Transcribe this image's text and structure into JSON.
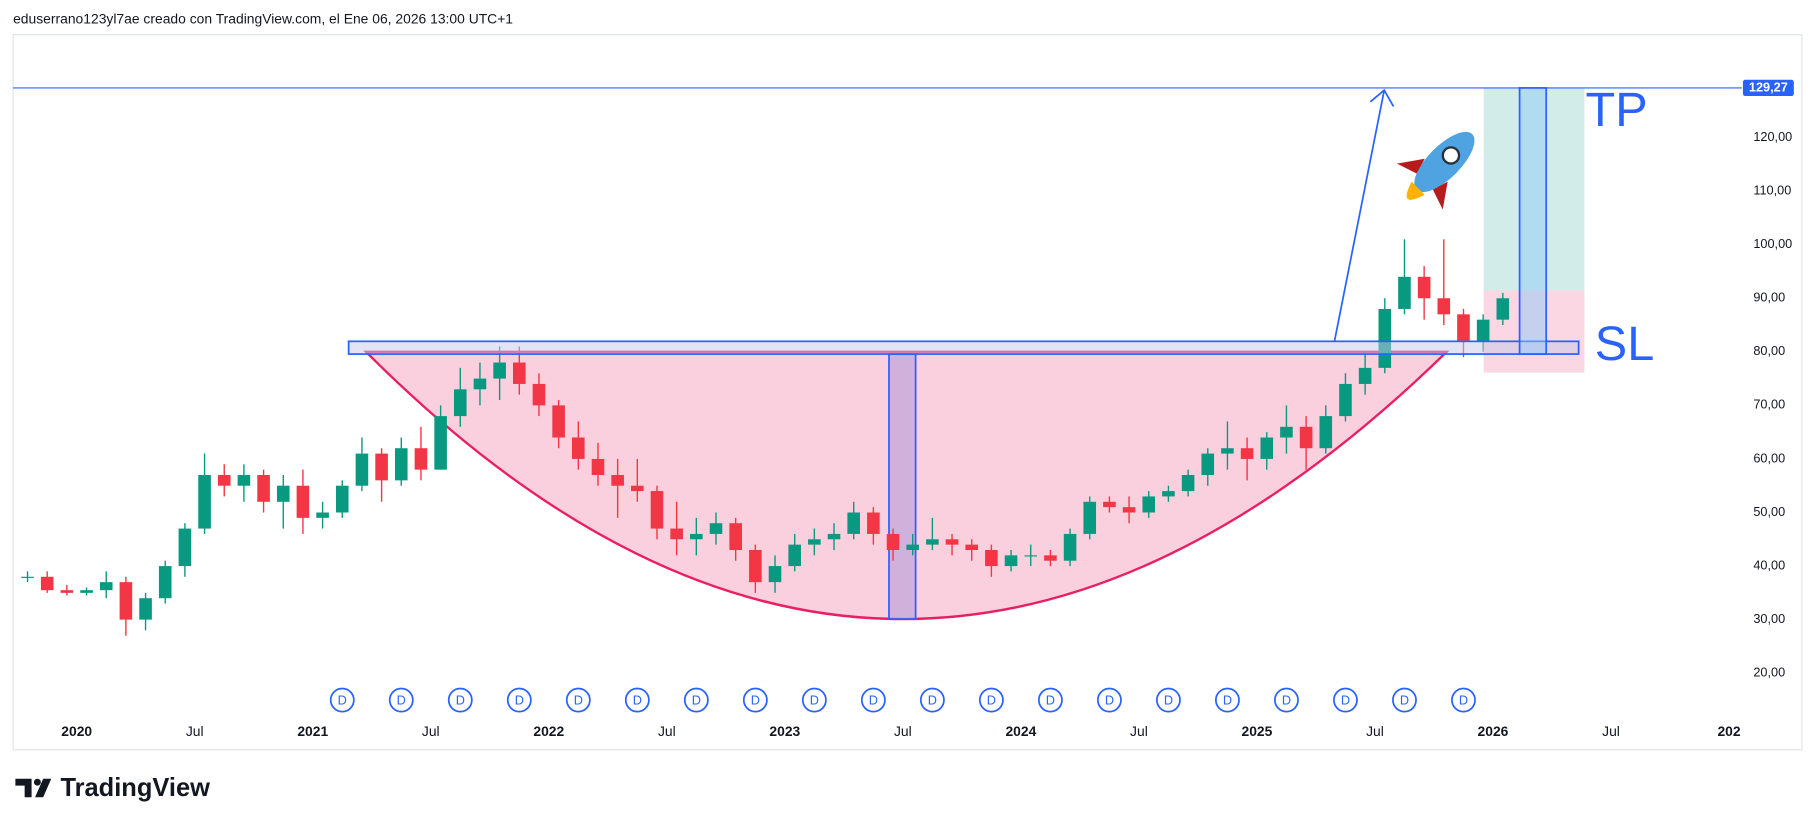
{
  "header": {
    "text": "eduserrano123yl7ae creado con TradingView.com, el Ene 06, 2026 13:00 UTC+1"
  },
  "footer": {
    "logo": "TradingView"
  },
  "chart_data": {
    "type": "candlestick",
    "x": [
      "2019-10",
      "2019-11",
      "2019-12",
      "2020-01",
      "2020-02",
      "2020-03",
      "2020-04",
      "2020-05",
      "2020-06",
      "2020-07",
      "2020-08",
      "2020-09",
      "2020-10",
      "2020-11",
      "2020-12",
      "2021-01",
      "2021-02",
      "2021-03",
      "2021-04",
      "2021-05",
      "2021-06",
      "2021-07",
      "2021-08",
      "2021-09",
      "2021-10",
      "2021-11",
      "2021-12",
      "2022-01",
      "2022-02",
      "2022-03",
      "2022-04",
      "2022-05",
      "2022-06",
      "2022-07",
      "2022-08",
      "2022-09",
      "2022-10",
      "2022-11",
      "2022-12",
      "2023-01",
      "2023-02",
      "2023-03",
      "2023-04",
      "2023-05",
      "2023-06",
      "2023-07",
      "2023-08",
      "2023-09",
      "2023-10",
      "2023-11",
      "2023-12",
      "2024-01",
      "2024-02",
      "2024-03",
      "2024-04",
      "2024-05",
      "2024-06",
      "2024-07",
      "2024-08",
      "2024-09",
      "2024-10",
      "2024-11",
      "2024-12",
      "2025-01",
      "2025-02",
      "2025-03",
      "2025-04",
      "2025-05",
      "2025-06",
      "2025-07",
      "2025-08",
      "2025-09",
      "2025-10",
      "2025-11",
      "2025-12",
      "2026-01"
    ],
    "open": [
      38,
      38,
      35.5,
      35,
      35.5,
      37,
      30,
      34,
      40,
      47,
      57,
      55,
      57,
      52,
      55,
      49,
      50,
      55,
      61,
      56,
      62,
      58,
      68,
      73,
      75,
      78,
      74,
      70,
      64,
      60,
      57,
      55,
      54,
      47,
      45,
      46,
      48,
      43,
      37,
      40,
      44,
      45,
      46,
      50,
      46,
      43,
      44,
      45,
      44,
      43,
      40,
      42,
      42,
      41,
      46,
      52,
      51,
      50,
      53,
      54,
      57,
      61,
      62,
      60,
      64,
      66,
      62,
      68,
      74,
      77,
      88,
      94,
      90,
      87,
      82,
      86
    ],
    "high": [
      39,
      39,
      36.5,
      36,
      39,
      38,
      35,
      41,
      48,
      61,
      59,
      59,
      58,
      57,
      58,
      52,
      56,
      64,
      62,
      64,
      66,
      70,
      77,
      78,
      81,
      81,
      76,
      71,
      67,
      63,
      60,
      60,
      55,
      52,
      49,
      50,
      49,
      44,
      42,
      46,
      47,
      48,
      52,
      51,
      47,
      46,
      49,
      46,
      45,
      44,
      43,
      44,
      43,
      47,
      53,
      53,
      53,
      54,
      55,
      58,
      62,
      67,
      64,
      65,
      70,
      68,
      70,
      76,
      80,
      90,
      101,
      96,
      101,
      88,
      87,
      91
    ],
    "low": [
      37,
      35,
      34.5,
      34.5,
      34,
      27,
      28,
      33,
      38,
      46,
      53,
      52,
      50,
      47,
      46,
      47,
      49,
      54,
      52,
      55,
      56,
      58,
      66,
      70,
      71,
      72,
      68,
      62,
      58,
      55,
      49,
      52,
      45,
      42,
      42,
      44,
      41,
      35,
      35,
      39,
      42,
      43,
      45,
      44,
      41,
      42,
      43,
      42,
      41,
      38,
      39,
      40,
      40,
      40,
      45,
      50,
      48,
      49,
      52,
      53,
      55,
      58,
      56,
      58,
      61,
      58,
      61,
      67,
      72,
      76,
      87,
      86,
      85,
      79,
      80,
      85
    ],
    "close": [
      38,
      35.5,
      35,
      35.5,
      37,
      30,
      34,
      40,
      47,
      57,
      55,
      57,
      52,
      55,
      49,
      50,
      55,
      61,
      56,
      62,
      58,
      68,
      73,
      75,
      78,
      74,
      70,
      64,
      60,
      57,
      55,
      54,
      47,
      45,
      46,
      48,
      43,
      37,
      40,
      44,
      45,
      46,
      50,
      46,
      43,
      44,
      45,
      44,
      43,
      40,
      42,
      42,
      41,
      46,
      52,
      51,
      50,
      53,
      54,
      57,
      61,
      62,
      60,
      64,
      66,
      62,
      68,
      74,
      77,
      88,
      94,
      90,
      87,
      82,
      86,
      90
    ],
    "up_color": "#089981",
    "down_color": "#f23645",
    "xlim": [
      "2019-10",
      "2027-01"
    ],
    "xticks": [
      {
        "value": "2020-01",
        "label": "2020"
      },
      {
        "value": "2020-07",
        "label": "Jul"
      },
      {
        "value": "2021-01",
        "label": "2021"
      },
      {
        "value": "2021-07",
        "label": "Jul"
      },
      {
        "value": "2022-01",
        "label": "2022"
      },
      {
        "value": "2022-07",
        "label": "Jul"
      },
      {
        "value": "2023-01",
        "label": "2023"
      },
      {
        "value": "2023-07",
        "label": "Jul"
      },
      {
        "value": "2024-01",
        "label": "2024"
      },
      {
        "value": "2024-07",
        "label": "Jul"
      },
      {
        "value": "2025-01",
        "label": "2025"
      },
      {
        "value": "2025-07",
        "label": "Jul"
      },
      {
        "value": "2026-01",
        "label": "2026"
      },
      {
        "value": "2026-07",
        "label": "Jul"
      },
      {
        "value": "2027-01",
        "label": "202"
      }
    ],
    "ylim": [
      5.7,
      139.2
    ],
    "yticks": [
      {
        "value": 20,
        "label": "20,00"
      },
      {
        "value": 30,
        "label": "30,00"
      },
      {
        "value": 40,
        "label": "40,00"
      },
      {
        "value": 50,
        "label": "50,00"
      },
      {
        "value": 60,
        "label": "60,00"
      },
      {
        "value": 70,
        "label": "70,00"
      },
      {
        "value": 80,
        "label": "80,00"
      },
      {
        "value": 90,
        "label": "90,00"
      },
      {
        "value": 100,
        "label": "100,00"
      },
      {
        "value": 110,
        "label": "110,00"
      },
      {
        "value": 120,
        "label": "120,00"
      }
    ],
    "price_line": {
      "value": 129.27,
      "label": "129,27",
      "color": "#2962ff"
    },
    "dividends": {
      "label": "D",
      "x": [
        "2021-02",
        "2021-05",
        "2021-08",
        "2021-11",
        "2022-02",
        "2022-05",
        "2022-08",
        "2022-11",
        "2023-02",
        "2023-05",
        "2023-08",
        "2023-11",
        "2024-02",
        "2024-05",
        "2024-08",
        "2024-11",
        "2025-02",
        "2025-05",
        "2025-08",
        "2025-11"
      ]
    },
    "annotations": {
      "tp": "TP",
      "sl": "SL"
    },
    "grid": false
  }
}
